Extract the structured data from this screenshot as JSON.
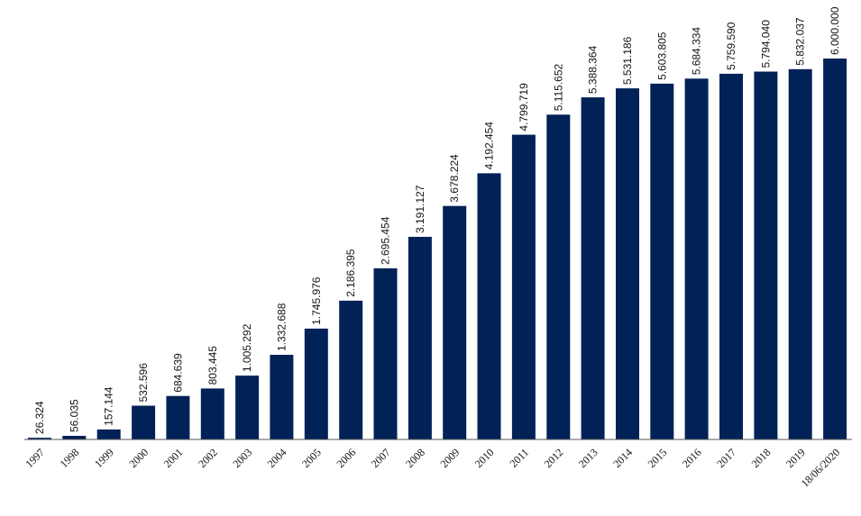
{
  "chart_data": {
    "type": "bar",
    "categories": [
      "1997",
      "1998",
      "1999",
      "2000",
      "2001",
      "2002",
      "2003",
      "2004",
      "2005",
      "2006",
      "2007",
      "2008",
      "2009",
      "2010",
      "2011",
      "2012",
      "2013",
      "2014",
      "2015",
      "2016",
      "2017",
      "2018",
      "2019",
      "18/06/2020"
    ],
    "values": [
      26324,
      56035,
      157144,
      532596,
      684639,
      803445,
      1005292,
      1332688,
      1745976,
      2186395,
      2695454,
      3191127,
      3678224,
      4192454,
      4799719,
      5115652,
      5388364,
      5531186,
      5603805,
      5684334,
      5759590,
      5794040,
      5832037,
      6000000
    ],
    "value_labels": [
      "26.324",
      "56.035",
      "157.144",
      "532.596",
      "684.639",
      "803.445",
      "1.005.292",
      "1.332.688",
      "1.745.976",
      "2.186.395",
      "2.695.454",
      "3.191.127",
      "3.678.224",
      "4.192.454",
      "4.799.719",
      "5.115.652",
      "5.388.364",
      "5.531.186",
      "5.603.805",
      "5.684.334",
      "5.759.590",
      "5.794.040",
      "5.832.037",
      "6.000.000"
    ],
    "title": "",
    "xlabel": "",
    "ylabel": "",
    "ylim": [
      0,
      6000000
    ],
    "grid": false,
    "legend": "none",
    "bar_color": "#012257"
  }
}
